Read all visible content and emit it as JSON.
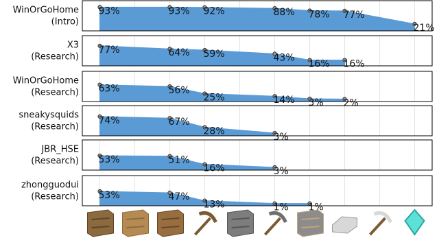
{
  "chart_data": [
    {
      "type": "area",
      "label": [
        "WinOrGoHome",
        "(Intro)"
      ],
      "x": [
        0,
        2,
        3,
        5,
        6,
        7,
        9
      ],
      "values": [
        93,
        93,
        92,
        88,
        78,
        77,
        21
      ],
      "value_labels": [
        "93%",
        "93%",
        "92%",
        "88%",
        "78%",
        "77%",
        "21%"
      ],
      "xlim": [
        -0.5,
        9.5
      ],
      "xticks": [
        0,
        1,
        2,
        3,
        4,
        5,
        6,
        7,
        8,
        9
      ],
      "ylim": [
        0,
        100
      ],
      "color": "#5b9bd5",
      "grid": true
    },
    {
      "type": "area",
      "label": [
        "X3",
        "(Research)"
      ],
      "x": [
        0,
        2,
        3,
        5,
        6,
        7
      ],
      "values": [
        77,
        64,
        59,
        43,
        16,
        16
      ],
      "value_labels": [
        "77%",
        "64%",
        "59%",
        "43%",
        "16%",
        "16%"
      ],
      "xlim": [
        -0.5,
        9.5
      ],
      "xticks": [
        0,
        1,
        2,
        3,
        4,
        5,
        6,
        7,
        8,
        9
      ],
      "ylim": [
        0,
        100
      ],
      "color": "#5b9bd5",
      "grid": true
    },
    {
      "type": "area",
      "label": [
        "WinOrGoHome",
        "(Research)"
      ],
      "x": [
        0,
        2,
        3,
        5,
        6,
        7
      ],
      "values": [
        63,
        56,
        25,
        14,
        3,
        2
      ],
      "value_labels": [
        "63%",
        "56%",
        "25%",
        "14%",
        "3%",
        "2%"
      ],
      "xlim": [
        -0.5,
        9.5
      ],
      "xticks": [
        0,
        1,
        2,
        3,
        4,
        5,
        6,
        7,
        8,
        9
      ],
      "ylim": [
        0,
        100
      ],
      "color": "#5b9bd5",
      "grid": true
    },
    {
      "type": "area",
      "label": [
        "sneakysquids",
        "(Research)"
      ],
      "x": [
        0,
        2,
        3,
        5
      ],
      "values": [
        74,
        67,
        28,
        3
      ],
      "value_labels": [
        "74%",
        "67%",
        "28%",
        "3%"
      ],
      "xlim": [
        -0.5,
        9.5
      ],
      "xticks": [
        0,
        1,
        2,
        3,
        4,
        5,
        6,
        7,
        8,
        9
      ],
      "ylim": [
        0,
        100
      ],
      "color": "#5b9bd5",
      "grid": true
    },
    {
      "type": "area",
      "label": [
        "JBR_HSE",
        "(Research)"
      ],
      "x": [
        0,
        2,
        3,
        5
      ],
      "values": [
        53,
        51,
        16,
        3
      ],
      "value_labels": [
        "53%",
        "51%",
        "16%",
        "3%"
      ],
      "xlim": [
        -0.5,
        9.5
      ],
      "xticks": [
        0,
        1,
        2,
        3,
        4,
        5,
        6,
        7,
        8,
        9
      ],
      "ylim": [
        0,
        100
      ],
      "color": "#5b9bd5",
      "grid": true
    },
    {
      "type": "area",
      "label": [
        "zhongguodui",
        "(Research)"
      ],
      "x": [
        0,
        2,
        3,
        5,
        6
      ],
      "values": [
        53,
        47,
        13,
        1,
        1
      ],
      "value_labels": [
        "53%",
        "47%",
        "13%",
        "1%",
        "1%"
      ],
      "xlim": [
        -0.5,
        9.5
      ],
      "xticks": [
        0,
        1,
        2,
        3,
        4,
        5,
        6,
        7,
        8,
        9
      ],
      "ylim": [
        0,
        100
      ],
      "color": "#5b9bd5",
      "grid": true
    }
  ]
}
